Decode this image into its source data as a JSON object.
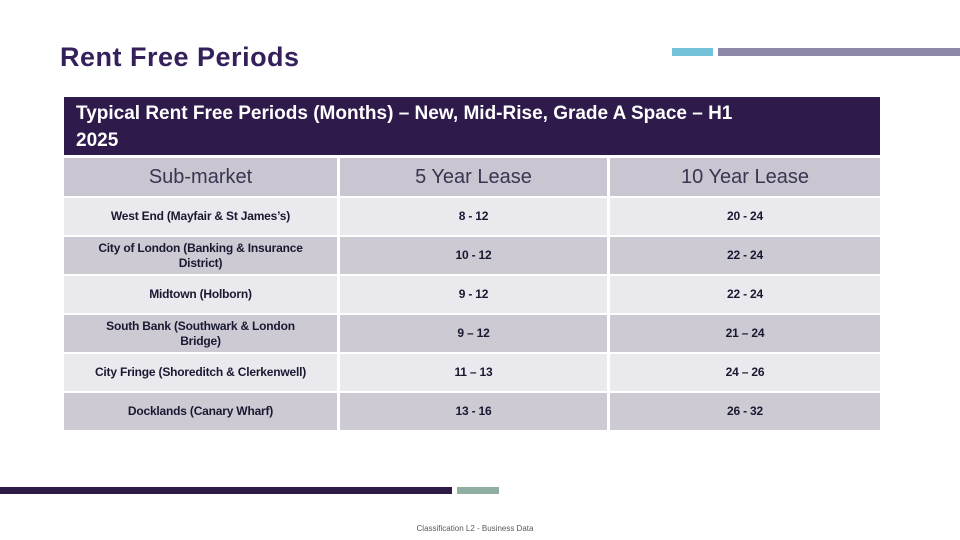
{
  "slide": {
    "title": "Rent Free Periods",
    "footer": "Classification L2 - Business Data"
  },
  "table": {
    "header": "Typical Rent Free Periods (Months) – New, Mid-Rise, Grade A Space – H1\n2025",
    "columns": [
      "Sub-market",
      "5 Year Lease",
      "10 Year Lease"
    ],
    "rows": [
      {
        "submarket": "West End (Mayfair & St James’s)",
        "five_year": "8 - 12",
        "ten_year": "20 - 24"
      },
      {
        "submarket": "City of London (Banking & Insurance\nDistrict)",
        "five_year": "10 - 12",
        "ten_year": "22 - 24"
      },
      {
        "submarket": "Midtown (Holborn)",
        "five_year": "9 - 12",
        "ten_year": "22 - 24"
      },
      {
        "submarket": "South Bank (Southwark & London\nBridge)",
        "five_year": "9 – 12",
        "ten_year": "21 – 24"
      },
      {
        "submarket": "City Fringe (Shoreditch & Clerkenwell)",
        "five_year": "11 – 13",
        "ten_year": "24 – 26"
      },
      {
        "submarket": "Docklands (Canary Wharf)",
        "five_year": "13 - 16",
        "ten_year": "26 - 32"
      }
    ]
  },
  "colors": {
    "title_text": "#34205a",
    "table_header_bg": "#2e1a4b",
    "table_header_text": "#ffffff",
    "column_header_bg": "#c9c6d1",
    "column_header_text": "#3a3550",
    "row_light_bg": "#eae9ed",
    "row_dark_bg": "#cdcad4",
    "row_text": "#191831",
    "accent_teal": "#73c2d9",
    "accent_gray_purple": "#8d88a8",
    "accent_dark_purple": "#2e1a47",
    "accent_sage_green": "#8fafa0",
    "footer_text": "#595959"
  }
}
